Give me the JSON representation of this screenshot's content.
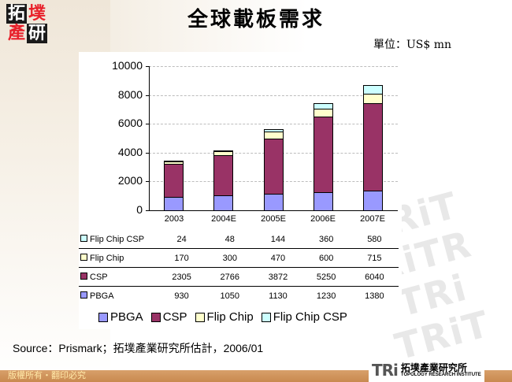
{
  "header": {
    "title": "全球載板需求",
    "unit": "單位：US$ mn",
    "logo_chars": [
      "拓",
      "墣",
      "產",
      "研"
    ]
  },
  "chart_data": {
    "type": "bar",
    "stacked": true,
    "title": "全球載板需求",
    "ylabel": "US$ mn",
    "xlabel": "",
    "ylim": [
      0,
      10000
    ],
    "yticks": [
      0,
      2000,
      4000,
      6000,
      8000,
      10000
    ],
    "grid": true,
    "legend_position": "bottom",
    "categories": [
      "2003",
      "2004E",
      "2005E",
      "2006E",
      "2007E"
    ],
    "series": [
      {
        "name": "PBGA",
        "color": "#9999ff",
        "values": [
          930,
          1050,
          1130,
          1230,
          1380
        ]
      },
      {
        "name": "CSP",
        "color": "#993366",
        "values": [
          2305,
          2766,
          3872,
          5250,
          6040
        ]
      },
      {
        "name": "Flip Chip",
        "color": "#ffffcc",
        "values": [
          170,
          300,
          470,
          600,
          715
        ]
      },
      {
        "name": "Flip Chip CSP",
        "color": "#ccffff",
        "values": [
          24,
          48,
          144,
          360,
          580
        ]
      }
    ]
  },
  "table": {
    "rows": [
      {
        "label": "Flip Chip CSP",
        "color": "#ccffff",
        "values": [
          "24",
          "48",
          "144",
          "360",
          "580"
        ]
      },
      {
        "label": "Flip Chip",
        "color": "#ffffcc",
        "values": [
          "170",
          "300",
          "470",
          "600",
          "715"
        ]
      },
      {
        "label": "CSP",
        "color": "#993366",
        "values": [
          "2305",
          "2766",
          "3872",
          "5250",
          "6040"
        ]
      },
      {
        "label": "PBGA",
        "color": "#9999ff",
        "values": [
          "930",
          "1050",
          "1130",
          "1230",
          "1380"
        ]
      }
    ]
  },
  "legend": {
    "items": [
      "PBGA",
      "CSP",
      "Flip Chip",
      "Flip Chip CSP"
    ]
  },
  "footer": {
    "source": "Source：Prismark；拓墣產業研究所估計，2006/01",
    "copyright": "版權所有・翻印必究",
    "org_mark": "TRi",
    "org_name_cn": "拓墣產業研究所",
    "org_name_en": "TOPOLOGY RESEARCH INSTITUTE"
  }
}
